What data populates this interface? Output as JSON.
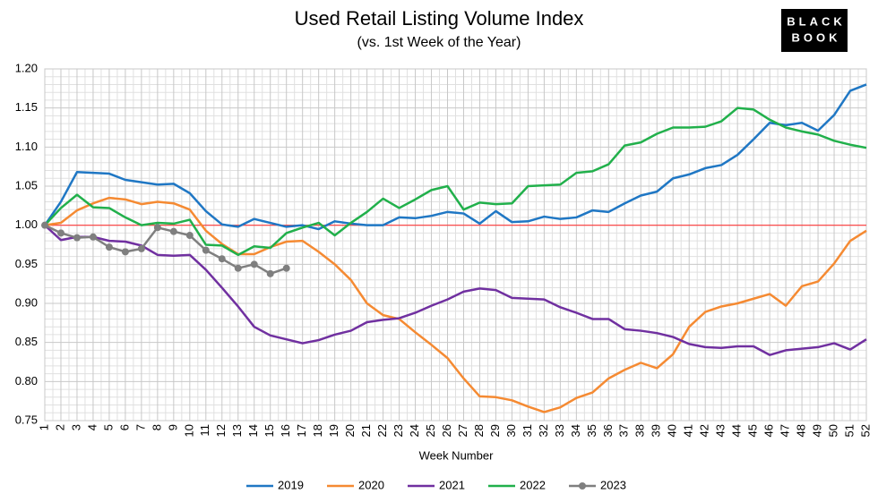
{
  "chart_data": {
    "type": "line",
    "title": "Used Retail Listing Volume Index",
    "subtitle": "(vs. 1st Week of the Year)",
    "x_label": "Week Number",
    "logo": [
      "BLACK",
      "BOOK"
    ],
    "categories": [
      "1",
      "2",
      "3",
      "4",
      "5",
      "6",
      "7",
      "8",
      "9",
      "10",
      "11",
      "12",
      "13",
      "14",
      "15",
      "16",
      "17",
      "18",
      "19",
      "20",
      "21",
      "22",
      "23",
      "24",
      "25",
      "26",
      "27",
      "28",
      "29",
      "30",
      "31",
      "32",
      "33",
      "34",
      "35",
      "36",
      "37",
      "38",
      "39",
      "40",
      "41",
      "42",
      "43",
      "44",
      "45",
      "46",
      "47",
      "48",
      "49",
      "50",
      "51",
      "52"
    ],
    "ylim": [
      0.75,
      1.2
    ],
    "yticks": [
      0.75,
      {
        "value": 0.8,
        "label": "0.80"
      },
      0.85,
      {
        "value": 0.9,
        "label": "0.90"
      },
      0.95,
      {
        "value": 1.0,
        "label": "1.00"
      },
      1.05,
      {
        "value": 1.1,
        "label": "1.10"
      },
      1.15,
      {
        "value": 1.2,
        "label": "1.20"
      }
    ],
    "grid": true,
    "reference_line": {
      "value": 1.0,
      "color": "#ff3b3b"
    },
    "legend": "bottom",
    "series": [
      {
        "name": "2019",
        "color": "#1f77c4",
        "values": [
          1.0,
          1.03,
          1.068,
          1.067,
          1.066,
          1.058,
          1.055,
          1.052,
          1.053,
          1.041,
          1.018,
          1.001,
          0.998,
          1.008,
          1.003,
          0.998,
          1.0,
          0.995,
          1.005,
          1.002,
          1.0,
          1.0,
          1.01,
          1.009,
          1.012,
          1.017,
          1.015,
          1.002,
          1.018,
          1.004,
          1.005,
          1.011,
          1.008,
          1.01,
          1.019,
          1.017,
          1.028,
          1.038,
          1.043,
          1.06,
          1.065,
          1.073,
          1.077,
          1.09,
          1.11,
          1.131,
          1.128,
          1.131,
          1.121,
          1.141,
          1.172,
          1.18
        ]
      },
      {
        "name": "2020",
        "color": "#f58a32",
        "values": [
          1.0,
          1.003,
          1.019,
          1.028,
          1.035,
          1.033,
          1.027,
          1.03,
          1.028,
          1.02,
          0.993,
          0.976,
          0.963,
          0.963,
          0.972,
          0.979,
          0.98,
          0.966,
          0.95,
          0.93,
          0.9,
          0.885,
          0.88,
          0.863,
          0.847,
          0.83,
          0.804,
          0.781,
          0.78,
          0.776,
          0.768,
          0.761,
          0.767,
          0.779,
          0.786,
          0.804,
          0.815,
          0.824,
          0.817,
          0.835,
          0.87,
          0.889,
          0.896,
          0.9,
          0.906,
          0.912,
          0.897,
          0.922,
          0.928,
          0.951,
          0.98,
          0.993
        ]
      },
      {
        "name": "2021",
        "color": "#7030a0",
        "values": [
          1.0,
          0.981,
          0.985,
          0.985,
          0.98,
          0.979,
          0.974,
          0.962,
          0.961,
          0.962,
          0.943,
          0.92,
          0.896,
          0.87,
          0.859,
          0.854,
          0.849,
          0.853,
          0.86,
          0.865,
          0.876,
          0.879,
          0.881,
          0.888,
          0.897,
          0.905,
          0.915,
          0.919,
          0.917,
          0.907,
          0.906,
          0.905,
          0.895,
          0.888,
          0.88,
          0.88,
          0.867,
          0.865,
          0.862,
          0.857,
          0.848,
          0.844,
          0.843,
          0.845,
          0.845,
          0.834,
          0.84,
          0.842,
          0.844,
          0.849,
          0.841,
          0.854
        ]
      },
      {
        "name": "2022",
        "color": "#21b04b",
        "values": [
          1.0,
          1.022,
          1.039,
          1.023,
          1.022,
          1.01,
          1.0,
          1.003,
          1.002,
          1.007,
          0.975,
          0.974,
          0.962,
          0.973,
          0.971,
          0.99,
          0.997,
          1.003,
          0.987,
          1.003,
          1.017,
          1.034,
          1.022,
          1.033,
          1.045,
          1.05,
          1.02,
          1.029,
          1.027,
          1.028,
          1.05,
          1.051,
          1.052,
          1.067,
          1.069,
          1.078,
          1.102,
          1.106,
          1.117,
          1.125,
          1.125,
          1.126,
          1.133,
          1.15,
          1.148,
          1.135,
          1.125,
          1.12,
          1.116,
          1.108,
          1.103,
          1.099
        ]
      },
      {
        "name": "2023",
        "color": "#7f7f7f",
        "marker": "circle",
        "values": [
          1.0,
          0.99,
          0.984,
          0.985,
          0.972,
          0.966,
          0.97,
          0.997,
          0.992,
          0.987,
          0.968,
          0.957,
          0.945,
          0.95,
          0.938,
          0.945,
          null,
          null,
          null,
          null,
          null,
          null,
          null,
          null,
          null,
          null,
          null,
          null,
          null,
          null,
          null,
          null,
          null,
          null,
          null,
          null,
          null,
          null,
          null,
          null,
          null,
          null,
          null,
          null,
          null,
          null,
          null,
          null,
          null,
          null,
          null,
          null
        ]
      }
    ]
  }
}
